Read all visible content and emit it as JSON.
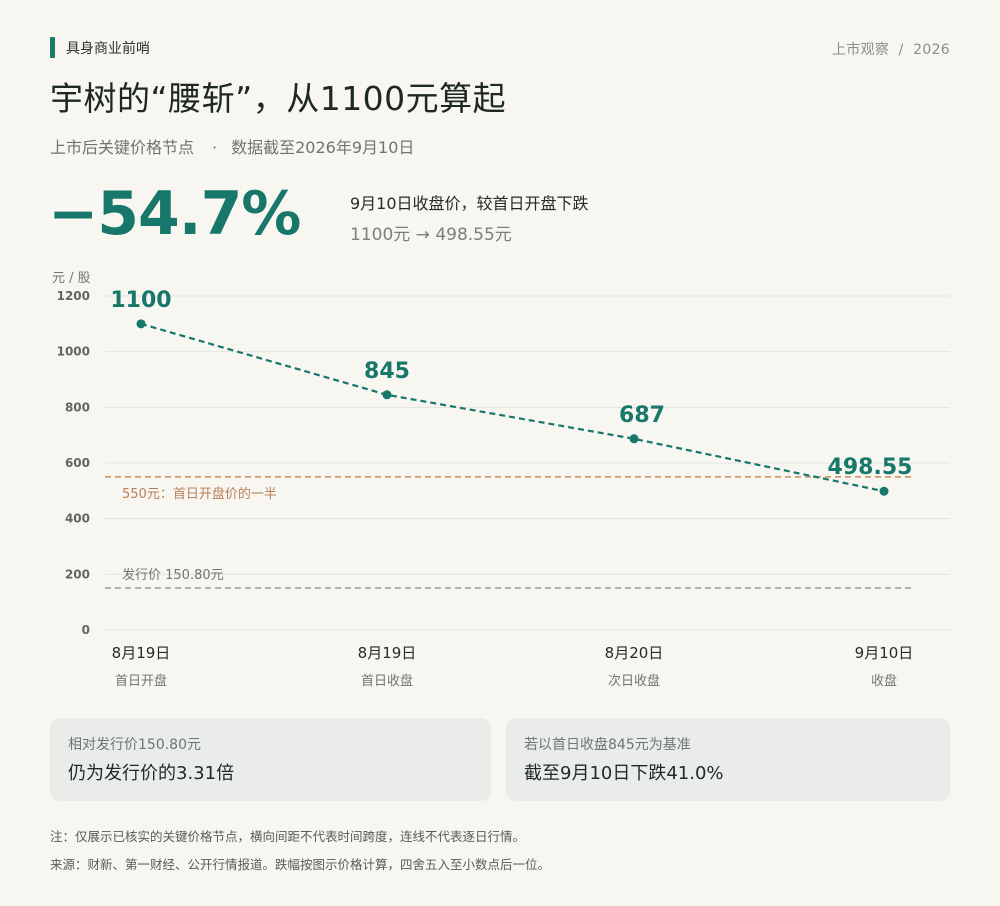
{
  "header": {
    "brand": "具身商业前哨",
    "top_right": "上市观察  /  2026",
    "title": "宇树的“腰斩”，从1100元算起",
    "subtitle_left": "上市后关键价格节点",
    "subtitle_sep": "·",
    "subtitle_right": "数据截至2026年9月10日"
  },
  "headline": {
    "value": "−54.7%",
    "desc": "9月10日收盘价，较首日开盘下跌",
    "range": "1100元 → 498.55元"
  },
  "colors": {
    "accent": "#16776a",
    "half_line": "#c98c5a",
    "issue_line": "#9a9d98"
  },
  "chart_data": {
    "type": "line",
    "unit_label": "元 / 股",
    "ylim": [
      0,
      1200
    ],
    "y_ticks": [
      0,
      200,
      400,
      600,
      800,
      1000,
      1200
    ],
    "grid": true,
    "categories": [
      "8月19日",
      "8月19日",
      "8月20日",
      "9月10日"
    ],
    "category_sub": [
      "首日开盘",
      "首日收盘",
      "次日收盘",
      "收盘"
    ],
    "values": [
      1100,
      845,
      687,
      498.55
    ],
    "point_labels": [
      "1100",
      "845",
      "687",
      "498.55"
    ],
    "reference_lines": [
      {
        "value": 550,
        "label": "550元：首日开盘价的一半"
      },
      {
        "value": 150.8,
        "label": "发行价 150.80元"
      }
    ]
  },
  "cards": [
    {
      "label": "相对发行价150.80元",
      "value": "仍为发行价的3.31倍"
    },
    {
      "label": "若以首日收盘845元为基准",
      "value": "截至9月10日下跌41.0%"
    }
  ],
  "notes": [
    "注：仅展示已核实的关键价格节点，横向间距不代表时间跨度，连线不代表逐日行情。",
    "来源：财新、第一财经、公开行情报道。跌幅按图示价格计算，四舍五入至小数点后一位。"
  ]
}
